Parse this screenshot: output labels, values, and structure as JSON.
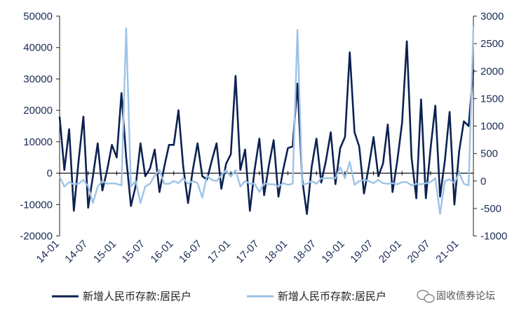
{
  "chart_data": {
    "type": "line",
    "x_labels": [
      "14-01",
      "14-07",
      "15-01",
      "15-07",
      "16-01",
      "16-07",
      "17-01",
      "17-07",
      "18-01",
      "18-07",
      "19-01",
      "19-07",
      "20-01",
      "20-07",
      "21-01"
    ],
    "series": [
      {
        "name": "新增人民币存款:居民户",
        "axis": "left",
        "color": "#0d2152",
        "values": [
          18000,
          1000,
          14000,
          -12000,
          4000,
          18000,
          -11000,
          -1000,
          9500,
          -5500,
          1000,
          9000,
          5000,
          25500,
          5000,
          -10500,
          -4000,
          9500,
          -1000,
          1500,
          7500,
          -6000,
          2000,
          9000,
          9000,
          20000,
          2000,
          -9500,
          1000,
          9500,
          -1000,
          -2000,
          4000,
          9500,
          -5000,
          3000,
          6000,
          31000,
          1000,
          7500,
          -12000,
          1000,
          11000,
          -7000,
          2500,
          10500,
          -7500,
          1000,
          8000,
          8500,
          28500,
          -2000,
          -13000,
          2000,
          11000,
          -3000,
          4000,
          13000,
          -3500,
          8000,
          11500,
          38500,
          13000,
          8500,
          -6500,
          2000,
          11500,
          -1000,
          3000,
          15500,
          -6000,
          4000,
          16000,
          42000,
          5000,
          -8000,
          23500,
          -8000,
          8000,
          21500,
          -7500,
          4000,
          19500,
          -10000,
          7000,
          16500,
          15000,
          33000
        ]
      },
      {
        "name": "新增人民币存款:居民户",
        "axis": "right",
        "color": "#9dc3e6",
        "values": [
          80,
          -100,
          -20,
          -60,
          -50,
          20,
          -100,
          -400,
          -100,
          0,
          -50,
          -40,
          -50,
          -80,
          2780,
          -100,
          0,
          -400,
          -100,
          -50,
          100,
          200,
          -50,
          -50,
          0,
          -40,
          50,
          -50,
          0,
          -40,
          -300,
          100,
          20,
          0,
          100,
          200,
          80,
          200,
          -100,
          0,
          -50,
          -50,
          -200,
          -40,
          -60,
          -60,
          -100,
          -40,
          -70,
          -50,
          2750,
          -60,
          -50,
          0,
          -50,
          50,
          50,
          50,
          50,
          250,
          50,
          350,
          -70,
          0,
          20,
          0,
          -40,
          20,
          -40,
          -50,
          -40,
          -60,
          -20,
          -20,
          -80,
          -50,
          -60,
          -40,
          -20,
          50,
          -600,
          0,
          30,
          -40,
          150,
          -50,
          -80,
          2820
        ]
      }
    ],
    "left_axis": {
      "ylim": [
        -20000,
        50000
      ],
      "ticks": [
        "-20000",
        "-10000",
        "0",
        "10000",
        "20000",
        "30000",
        "40000",
        "50000"
      ]
    },
    "right_axis": {
      "ylim": [
        -1000,
        3000
      ],
      "ticks": [
        "-1000",
        "-500",
        "0",
        "500",
        "1000",
        "1500",
        "2000",
        "2500",
        "3000"
      ]
    },
    "grid": false,
    "legend_position": "bottom",
    "legend": [
      {
        "label": "新增人民币存款:居民户",
        "color": "#0d2152"
      },
      {
        "label": "新增人民币存款:居民户",
        "color": "#9dc3e6"
      }
    ]
  },
  "watermark": {
    "text": "固收债券论坛",
    "icon": "wechat-icon"
  }
}
